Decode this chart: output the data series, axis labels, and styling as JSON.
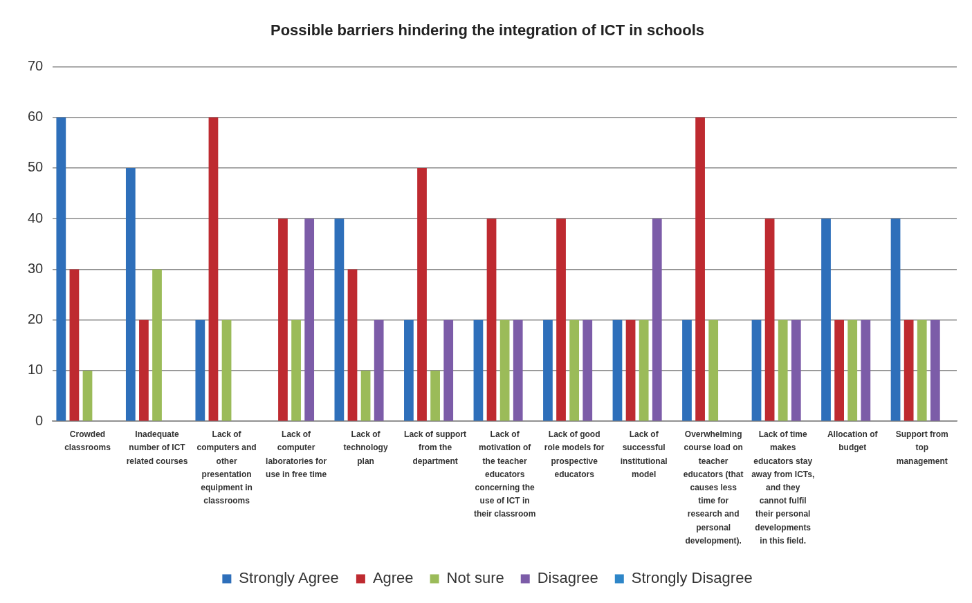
{
  "chart_data": {
    "type": "bar",
    "title": "Possible barriers hindering the integration of ICT in schools",
    "categories": [
      "Crowded classrooms",
      "Inadequate number of ICT related courses",
      "Lack of computers and other presentation equipment in classrooms",
      "Lack of computer laboratories for use in free time",
      "Lack of technology plan",
      "Lack of support from the department",
      "Lack of motivation of the teacher educators concerning the use of ICT in their classroom",
      "Lack of good role models for prospective educators",
      "Lack of successful institutional model",
      "Overwhelming course load on teacher educators (that causes less time for research and personal development).",
      "Lack of time makes educators stay away from ICTs, and they cannot fulfil their personal developments in this field.",
      "Allocation of budget",
      "Support from top management"
    ],
    "series": [
      {
        "name": "Strongly Agree",
        "color": "#2e6fba",
        "values": [
          60,
          50,
          20,
          0,
          40,
          20,
          20,
          20,
          20,
          20,
          20,
          40,
          40
        ]
      },
      {
        "name": "Agree",
        "color": "#be2a30",
        "values": [
          30,
          20,
          60,
          40,
          30,
          50,
          40,
          40,
          20,
          60,
          40,
          20,
          20
        ]
      },
      {
        "name": "Not sure",
        "color": "#9bbb59",
        "values": [
          10,
          30,
          20,
          20,
          10,
          10,
          20,
          20,
          20,
          20,
          20,
          20,
          20
        ]
      },
      {
        "name": "Disagree",
        "color": "#7c5ca8",
        "values": [
          0,
          0,
          0,
          40,
          20,
          20,
          20,
          20,
          40,
          0,
          20,
          20,
          20
        ]
      },
      {
        "name": "Strongly Disagree",
        "color": "#2e86c8",
        "values": [
          0,
          0,
          0,
          0,
          0,
          0,
          0,
          0,
          0,
          0,
          0,
          0,
          0
        ]
      }
    ],
    "ylim": [
      0,
      70
    ],
    "yticks": [
      0,
      10,
      20,
      30,
      40,
      50,
      60,
      70
    ],
    "grid": "y",
    "legend": "bottom"
  }
}
